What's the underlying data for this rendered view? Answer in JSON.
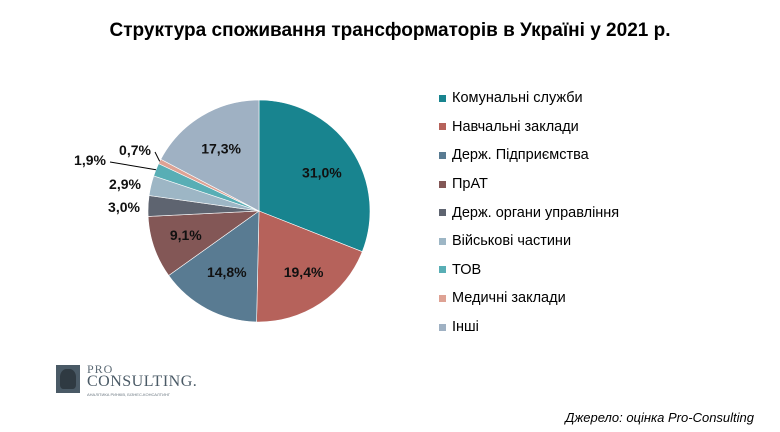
{
  "chart_data": {
    "type": "pie",
    "title": "Структура споживання трансформаторів в Україні у 2021 р.",
    "categories": [
      "Комунальні служби",
      "Навчальні заклади",
      "Держ. Підприємства",
      "ПрАТ",
      "Держ. органи управління",
      "Військові частини",
      "ТОВ",
      "Медичні заклади",
      "Інші"
    ],
    "values": [
      31.0,
      19.4,
      14.8,
      9.1,
      3.0,
      2.9,
      1.9,
      0.7,
      17.3
    ],
    "data_labels": [
      "31,0%",
      "19,4%",
      "14,8%",
      "9,1%",
      "3,0%",
      "2,9%",
      "1,9%",
      "0,7%",
      "17,3%"
    ],
    "colors": [
      "#18848f",
      "#b6625b",
      "#597b92",
      "#835756",
      "#5e6470",
      "#9db6c5",
      "#58aeb5",
      "#dea294",
      "#9fb1c3"
    ],
    "legend_position": "right"
  },
  "logo": {
    "line1": "PRO",
    "line2": "CONSULTING.",
    "tagline": "АНАЛІТИКА РИНКІВ, БІЗНЕС-КОНСАЛТИНГ"
  },
  "source": "Джерело: оцінка Pro-Consulting"
}
